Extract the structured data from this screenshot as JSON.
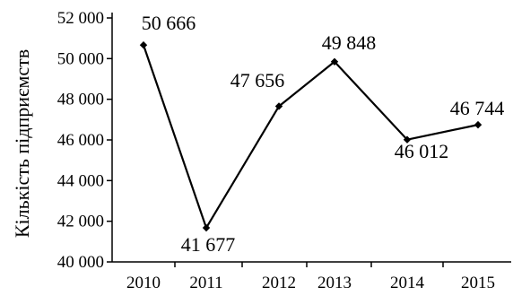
{
  "chart_data": {
    "type": "line",
    "title": "",
    "xlabel": "",
    "ylabel": "Кількість підприємств",
    "categories": [
      "2010",
      "2011",
      "2012",
      "2013",
      "2014",
      "2015"
    ],
    "series": [
      {
        "values": [
          50666,
          41677,
          47656,
          49848,
          46012,
          46744
        ],
        "data_labels": [
          "50 666",
          "41 677",
          "47 656",
          "49 848",
          "46 012",
          "46 744"
        ],
        "color": "#000000"
      }
    ],
    "ylim": [
      40000,
      52000
    ],
    "yticks": [
      40000,
      42000,
      44000,
      46000,
      48000,
      50000,
      52000
    ],
    "ytick_labels": [
      "40 000",
      "42 000",
      "44 000",
      "46 000",
      "48 000",
      "50 000",
      "52 000"
    ],
    "grid": false,
    "legend": "none"
  }
}
